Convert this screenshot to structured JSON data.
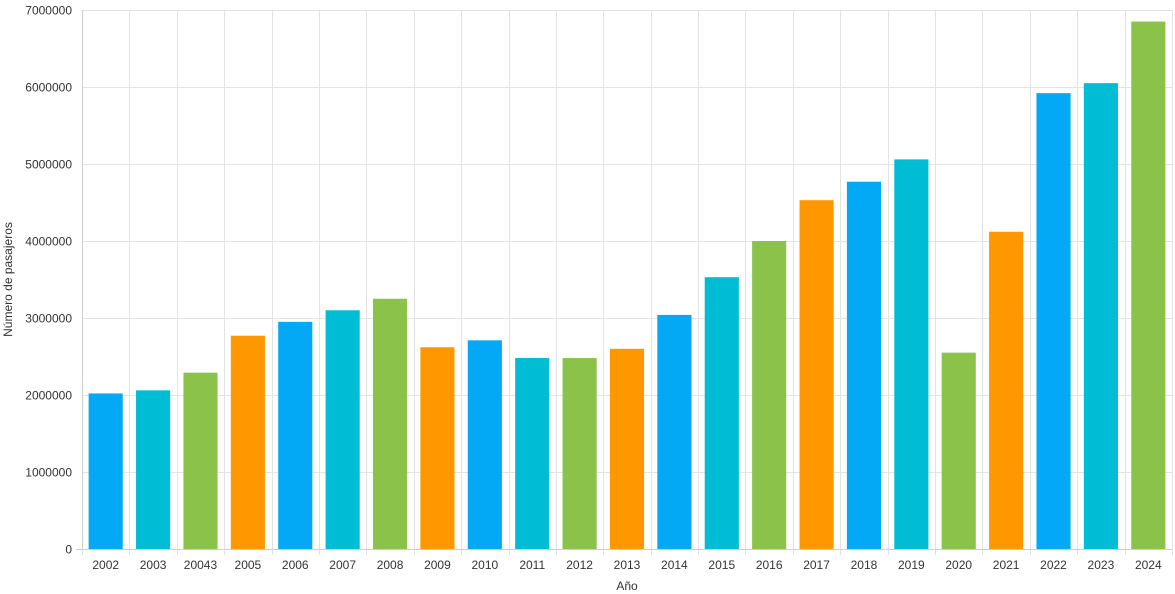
{
  "chart_data": {
    "type": "bar",
    "xlabel": "Año",
    "ylabel": "Número de pasajeros",
    "ylim": [
      0,
      7000000
    ],
    "yticks": [
      0,
      1000000,
      2000000,
      3000000,
      4000000,
      5000000,
      6000000,
      7000000
    ],
    "ytick_labels": [
      "0",
      "1000000",
      "2000000",
      "3000000",
      "4000000",
      "5000000",
      "6000000",
      "7000000"
    ],
    "grid": true,
    "legend": "none",
    "categories": [
      "2002",
      "2003",
      "20043",
      "2005",
      "2006",
      "2007",
      "2008",
      "2009",
      "2010",
      "2011",
      "2012",
      "2013",
      "2014",
      "2015",
      "2016",
      "2017",
      "2018",
      "2019",
      "2020",
      "2021",
      "2022",
      "2023",
      "2024"
    ],
    "values": [
      2020000,
      2060000,
      2290000,
      2770000,
      2950000,
      3100000,
      3250000,
      2620000,
      2710000,
      2480000,
      2480000,
      2600000,
      3040000,
      3530000,
      4000000,
      4530000,
      4770000,
      5060000,
      2550000,
      4120000,
      5920000,
      6050000,
      6850000
    ],
    "bar_colors": [
      "#03a9f4",
      "#00bcd4",
      "#8bc34a",
      "#ff9800",
      "#03a9f4",
      "#00bcd4",
      "#8bc34a",
      "#ff9800",
      "#03a9f4",
      "#00bcd4",
      "#8bc34a",
      "#ff9800",
      "#03a9f4",
      "#00bcd4",
      "#8bc34a",
      "#ff9800",
      "#03a9f4",
      "#00bcd4",
      "#8bc34a",
      "#ff9800",
      "#03a9f4",
      "#00bcd4",
      "#8bc34a"
    ]
  }
}
